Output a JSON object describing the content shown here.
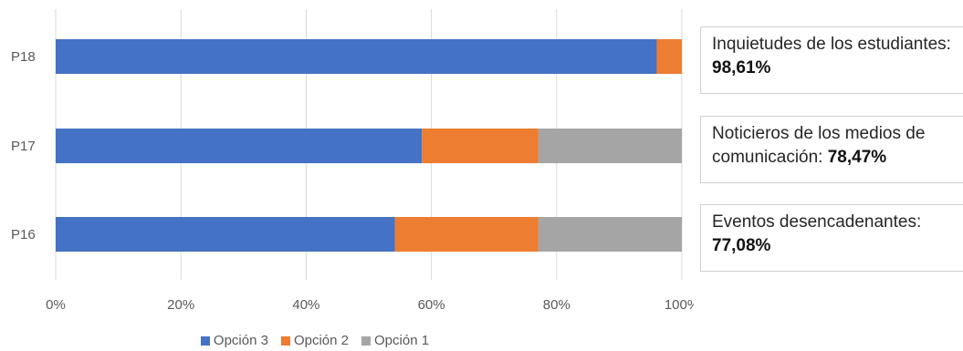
{
  "chart_data": {
    "type": "bar",
    "orientation": "horizontal",
    "stacked": "percent",
    "categories": [
      "P18",
      "P17",
      "P16"
    ],
    "series": [
      {
        "name": "Opción 3",
        "color": "#4472C4",
        "values": [
          96.0,
          58.5,
          54.2
        ]
      },
      {
        "name": "Opción 2",
        "color": "#ED7D31",
        "values": [
          4.0,
          18.6,
          22.9
        ]
      },
      {
        "name": "Opción 1",
        "color": "#A5A5A5",
        "values": [
          0.0,
          22.9,
          22.9
        ]
      }
    ],
    "x_ticks": [
      "0%",
      "20%",
      "40%",
      "60%",
      "80%",
      "100%"
    ],
    "xlim": [
      0,
      100
    ],
    "grid": true,
    "legend": "bottom"
  },
  "annotations": [
    {
      "category": "P18",
      "text": "Inquietudes de los estudiantes: ",
      "value": "98,61%"
    },
    {
      "category": "P17",
      "text": "Noticieros de los medios de comunicación: ",
      "value": "78,47%"
    },
    {
      "category": "P16",
      "text": "Eventos desencadenantes: ",
      "value": "77,08%"
    }
  ]
}
